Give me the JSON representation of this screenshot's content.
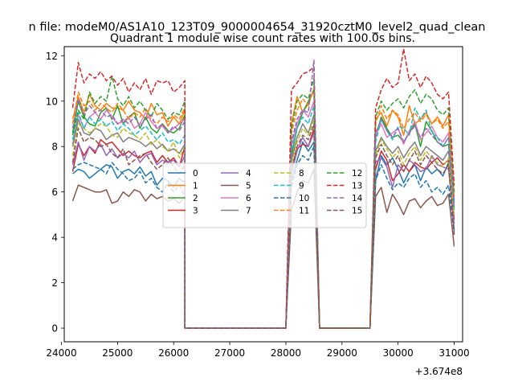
{
  "chart_data": {
    "type": "line",
    "suptitle": "n file: modeM0/AS1A10_123T09_9000004654_31920cztM0_level2_quad_clean",
    "title": "Quadrant 1 module wise count rates with 100.0s bins.",
    "xlabel": "",
    "ylabel": "",
    "x_offset_label": "+3.674e8",
    "xlim": [
      24050,
      31150
    ],
    "ylim": [
      -0.6,
      12.4
    ],
    "xticks": [
      24000,
      25000,
      26000,
      27000,
      28000,
      29000,
      30000,
      31000
    ],
    "xtick_labels": [
      "24000",
      "25000",
      "26000",
      "27000",
      "28000",
      "29000",
      "30000",
      "31000"
    ],
    "yticks": [
      0,
      2,
      4,
      6,
      8,
      10,
      12
    ],
    "ytick_labels": [
      "0",
      "2",
      "4",
      "6",
      "8",
      "10",
      "12"
    ],
    "legend_position": "center",
    "legend_columns": 4,
    "colors": [
      "#1f77b4",
      "#ff7f0e",
      "#2ca02c",
      "#d62728",
      "#9467bd",
      "#8c564b",
      "#e377c2",
      "#7f7f7f",
      "#bcbd22",
      "#17becf"
    ],
    "segments": [
      {
        "start": 24200,
        "count": 21
      },
      {
        "start": 28100,
        "count": 5
      },
      {
        "start": 29600,
        "count": 15
      }
    ],
    "gaps": [
      {
        "from": 26100,
        "to": 28100
      },
      {
        "from": 28500,
        "to": 29600
      }
    ],
    "series": [
      {
        "name": "0",
        "style": "solid",
        "base": [
          6.8,
          7.0,
          6.9,
          6.6,
          6.8,
          7.0,
          7.2,
          7.1,
          6.6,
          6.9,
          7.0,
          6.8,
          7.1,
          6.7,
          6.9,
          6.3,
          6.6,
          6.5,
          6.2,
          6.6,
          6.4
        ],
        "peak": [
          6.5,
          7.4,
          8.2,
          7.8,
          8.2
        ],
        "end": [
          6.5,
          7.6,
          7.2,
          7.5,
          7.0,
          6.4,
          6.9,
          7.2,
          6.5,
          7.1,
          6.8,
          7.0,
          6.7,
          7.3,
          4.3
        ]
      },
      {
        "name": "1",
        "style": "solid",
        "base": [
          9.2,
          10.2,
          9.5,
          10.3,
          9.8,
          9.6,
          9.9,
          9.7,
          9.7,
          9.6,
          10.0,
          9.6,
          9.5,
          9.2,
          9.9,
          9.4,
          9.5,
          8.9,
          9.3,
          9.0,
          9.6
        ],
        "peak": [
          9.0,
          10.2,
          9.5,
          9.9,
          10.5
        ],
        "end": [
          9.2,
          9.5,
          8.9,
          9.6,
          9.3,
          8.5,
          9.8,
          9.0,
          9.2,
          9.5,
          9.0,
          9.3,
          8.9,
          9.4,
          5.5
        ]
      },
      {
        "name": "2",
        "style": "solid",
        "base": [
          8.6,
          10.0,
          9.3,
          9.0,
          8.9,
          9.5,
          9.7,
          9.2,
          9.8,
          9.0,
          9.3,
          9.5,
          8.8,
          9.3,
          8.8,
          8.6,
          9.0,
          8.7,
          8.6,
          8.8,
          9.4
        ],
        "peak": [
          7.6,
          8.8,
          9.5,
          10.0,
          10.5
        ],
        "end": [
          8.4,
          9.3,
          8.8,
          8.4,
          8.5,
          8.2,
          8.6,
          9.0,
          8.0,
          9.1,
          8.7,
          8.2,
          8.0,
          8.1,
          5.6
        ]
      },
      {
        "name": "3",
        "style": "solid",
        "base": [
          6.9,
          8.1,
          7.6,
          8.0,
          7.7,
          8.3,
          8.1,
          8.2,
          7.9,
          7.6,
          7.8,
          7.6,
          7.5,
          7.7,
          7.8,
          7.3,
          7.6,
          7.3,
          7.5,
          7.1,
          8.0
        ],
        "peak": [
          6.9,
          7.9,
          8.1,
          8.0,
          8.8
        ],
        "end": [
          7.0,
          7.8,
          7.4,
          6.5,
          6.8,
          7.2,
          6.9,
          7.3,
          7.1,
          7.0,
          7.3,
          7.5,
          7.2,
          7.4,
          4.8
        ]
      },
      {
        "name": "4",
        "style": "solid",
        "base": [
          7.2,
          8.2,
          7.4,
          8.0,
          7.8,
          8.1,
          7.6,
          7.9,
          7.5,
          7.7,
          7.5,
          7.8,
          7.3,
          7.6,
          7.7,
          7.2,
          7.4,
          7.3,
          7.4,
          7.1,
          7.6
        ],
        "peak": [
          6.8,
          7.8,
          8.4,
          8.0,
          8.6
        ],
        "end": [
          7.3,
          7.5,
          7.1,
          6.2,
          7.2,
          6.9,
          7.4,
          7.2,
          6.9,
          7.0,
          7.6,
          7.2,
          7.1,
          7.0,
          4.6
        ]
      },
      {
        "name": "5",
        "style": "solid",
        "base": [
          5.6,
          6.3,
          6.2,
          6.1,
          6.0,
          6.0,
          6.1,
          5.5,
          5.6,
          6.0,
          5.8,
          6.1,
          6.0,
          5.6,
          5.9,
          5.7,
          5.8,
          5.6,
          5.7,
          5.5,
          5.8
        ],
        "peak": [
          5.2,
          6.0,
          6.5,
          6.4,
          7.0
        ],
        "end": [
          5.8,
          6.2,
          5.1,
          5.9,
          5.5,
          5.0,
          5.6,
          5.7,
          5.3,
          5.6,
          5.8,
          5.4,
          5.5,
          5.9,
          3.6
        ]
      },
      {
        "name": "6",
        "style": "solid",
        "base": [
          8.1,
          9.4,
          8.8,
          9.3,
          9.5,
          9.2,
          9.6,
          9.3,
          9.0,
          9.1,
          9.3,
          8.8,
          9.0,
          9.5,
          9.1,
          8.8,
          8.9,
          8.6,
          8.8,
          9.0,
          9.2
        ],
        "peak": [
          8.0,
          9.0,
          9.6,
          9.3,
          10.0
        ],
        "end": [
          8.5,
          9.0,
          8.4,
          8.6,
          8.8,
          8.1,
          8.7,
          9.1,
          8.3,
          8.6,
          8.9,
          8.4,
          8.2,
          8.6,
          5.7
        ]
      },
      {
        "name": "7",
        "style": "solid",
        "base": [
          8.0,
          9.2,
          8.6,
          8.5,
          8.8,
          8.7,
          8.3,
          8.5,
          8.6,
          8.2,
          8.4,
          8.3,
          8.2,
          8.0,
          8.2,
          7.9,
          8.1,
          7.8,
          7.9,
          7.7,
          8.1
        ],
        "peak": [
          7.4,
          8.4,
          9.0,
          8.6,
          9.4
        ],
        "end": [
          7.8,
          8.4,
          8.0,
          7.7,
          8.0,
          7.5,
          7.9,
          8.2,
          7.6,
          8.0,
          7.8,
          7.6,
          7.4,
          7.8,
          5.2
        ]
      },
      {
        "name": "8",
        "style": "dashed",
        "base": [
          7.6,
          9.0,
          8.8,
          8.6,
          8.8,
          9.0,
          8.9,
          8.5,
          8.4,
          8.8,
          8.6,
          8.5,
          8.3,
          8.6,
          8.1,
          8.3,
          8.0,
          7.8,
          8.2,
          7.5,
          8.0
        ],
        "peak": [
          7.2,
          8.2,
          8.8,
          8.5,
          9.2
        ],
        "end": [
          7.6,
          8.3,
          7.9,
          7.5,
          7.8,
          7.2,
          7.7,
          8.0,
          7.4,
          7.8,
          7.5,
          7.3,
          7.1,
          7.5,
          5.0
        ]
      },
      {
        "name": "9",
        "style": "dashed",
        "base": [
          8.3,
          9.5,
          8.8,
          9.3,
          9.0,
          9.2,
          8.9,
          9.1,
          8.7,
          9.0,
          8.8,
          8.5,
          8.7,
          8.9,
          8.6,
          8.3,
          8.6,
          8.2,
          8.3,
          8.1,
          8.5
        ],
        "peak": [
          7.8,
          8.8,
          9.3,
          9.0,
          9.8
        ],
        "end": [
          8.2,
          9.2,
          8.7,
          8.3,
          8.9,
          8.8,
          8.5,
          9.7,
          9.2,
          9.6,
          8.6,
          8.4,
          8.0,
          8.4,
          5.3
        ]
      },
      {
        "name": "10",
        "style": "dashed",
        "base": [
          7.0,
          7.2,
          7.3,
          7.2,
          7.1,
          7.0,
          6.8,
          7.3,
          7.0,
          6.8,
          6.5,
          6.6,
          6.9,
          6.4,
          6.6,
          6.2,
          6.0,
          6.4,
          6.0,
          6.3,
          5.8
        ],
        "peak": [
          6.2,
          7.2,
          7.6,
          7.4,
          8.0
        ],
        "end": [
          6.5,
          7.2,
          6.6,
          6.1,
          6.4,
          6.2,
          6.6,
          6.8,
          6.2,
          6.5,
          6.0,
          6.2,
          5.9,
          6.3,
          4.2
        ]
      },
      {
        "name": "11",
        "style": "dashed",
        "base": [
          9.0,
          10.4,
          9.8,
          10.0,
          9.6,
          9.9,
          9.7,
          9.5,
          9.9,
          9.6,
          9.2,
          9.5,
          9.3,
          9.7,
          9.2,
          9.0,
          9.3,
          9.1,
          9.4,
          9.2,
          9.7
        ],
        "peak": [
          8.6,
          9.6,
          10.1,
          9.8,
          10.6
        ],
        "end": [
          9.0,
          9.8,
          9.2,
          9.6,
          9.4,
          8.8,
          9.2,
          9.5,
          9.1,
          9.4,
          9.0,
          9.2,
          8.8,
          9.1,
          5.8
        ]
      },
      {
        "name": "12",
        "style": "dashed",
        "base": [
          8.5,
          9.6,
          9.2,
          10.4,
          9.9,
          10.2,
          10.0,
          11.1,
          10.1,
          9.8,
          10.2,
          9.7,
          10.0,
          9.6,
          9.3,
          9.9,
          9.6,
          9.2,
          9.5,
          9.4,
          10.0
        ],
        "peak": [
          8.8,
          10.0,
          10.3,
          10.1,
          11.0
        ],
        "end": [
          9.3,
          10.0,
          9.6,
          9.9,
          10.1,
          9.7,
          10.2,
          10.5,
          9.9,
          10.3,
          10.1,
          9.6,
          9.4,
          9.7,
          6.0
        ]
      },
      {
        "name": "13",
        "style": "dashed",
        "base": [
          9.7,
          11.7,
          10.8,
          11.2,
          11.0,
          11.3,
          10.9,
          11.1,
          10.7,
          11.0,
          10.4,
          10.8,
          10.5,
          11.0,
          10.3,
          10.9,
          10.8,
          10.9,
          10.4,
          10.6,
          10.9
        ],
        "peak": [
          10.5,
          10.8,
          11.2,
          11.3,
          11.5
        ],
        "end": [
          9.7,
          10.5,
          11.0,
          10.6,
          10.8,
          12.3,
          10.9,
          11.2,
          10.6,
          11.1,
          10.8,
          10.3,
          10.1,
          10.4,
          6.3
        ]
      },
      {
        "name": "14",
        "style": "dashed",
        "base": [
          8.8,
          10.1,
          9.4,
          9.8,
          9.5,
          9.6,
          9.3,
          9.4,
          9.0,
          9.2,
          9.0,
          9.3,
          8.9,
          9.2,
          9.4,
          8.8,
          9.0,
          8.6,
          8.9,
          8.7,
          9.1
        ],
        "peak": [
          8.2,
          9.2,
          9.6,
          9.5,
          11.8
        ],
        "end": [
          8.6,
          9.2,
          8.7,
          8.4,
          8.8,
          8.2,
          8.6,
          8.9,
          8.4,
          8.8,
          8.5,
          8.2,
          8.0,
          8.4,
          5.4
        ]
      },
      {
        "name": "15",
        "style": "dashed",
        "base": [
          7.3,
          8.8,
          8.2,
          8.4,
          8.3,
          8.0,
          8.1,
          7.7,
          7.5,
          7.9,
          7.2,
          7.4,
          7.6,
          7.7,
          7.3,
          7.0,
          7.2,
          7.5,
          7.1,
          6.8,
          7.2
        ],
        "peak": [
          7.0,
          8.0,
          8.5,
          8.3,
          9.0
        ],
        "end": [
          7.5,
          8.1,
          7.6,
          7.2,
          7.6,
          6.9,
          7.4,
          7.8,
          7.2,
          7.6,
          7.3,
          7.0,
          6.8,
          7.2,
          4.1
        ]
      }
    ]
  }
}
